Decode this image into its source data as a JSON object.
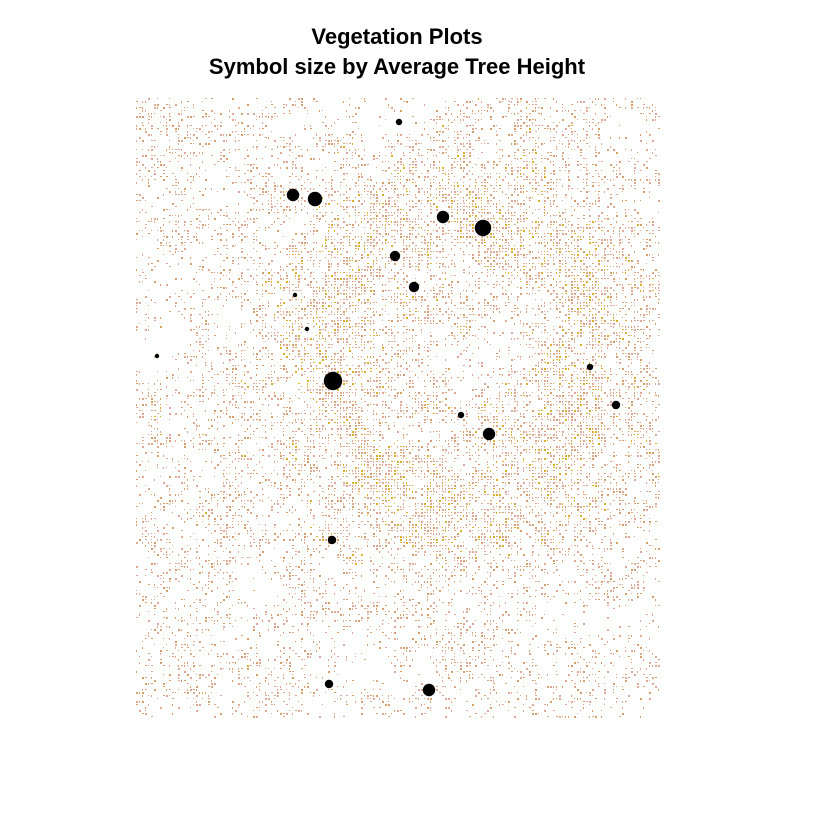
{
  "title": "Vegetation Plots",
  "subtitle": "Symbol size by Average Tree Height",
  "colors": {
    "raster_low": "#dba995",
    "raster_mid": "#d39f6f",
    "raster_high": "#d9b02a",
    "background": "#ffffff",
    "points": "#000000"
  },
  "chart_data": {
    "type": "scatter",
    "title": "Vegetation Plots",
    "subtitle": "Symbol size by Average Tree Height",
    "basemap": "canopy-height-raster",
    "legend": "none",
    "grid": false,
    "size_variable": "Average Tree Height",
    "points": [
      {
        "size_level": 2
      },
      {
        "size_level": 5
      },
      {
        "size_level": 6
      },
      {
        "size_level": 5
      },
      {
        "size_level": 7
      },
      {
        "size_level": 4
      },
      {
        "size_level": 4
      },
      {
        "size_level": 1
      },
      {
        "size_level": 1
      },
      {
        "size_level": 1
      },
      {
        "size_level": 8
      },
      {
        "size_level": 2
      },
      {
        "size_level": 3
      },
      {
        "size_level": 2
      },
      {
        "size_level": 5
      },
      {
        "size_level": 3
      },
      {
        "size_level": 3
      },
      {
        "size_level": 5
      }
    ]
  }
}
